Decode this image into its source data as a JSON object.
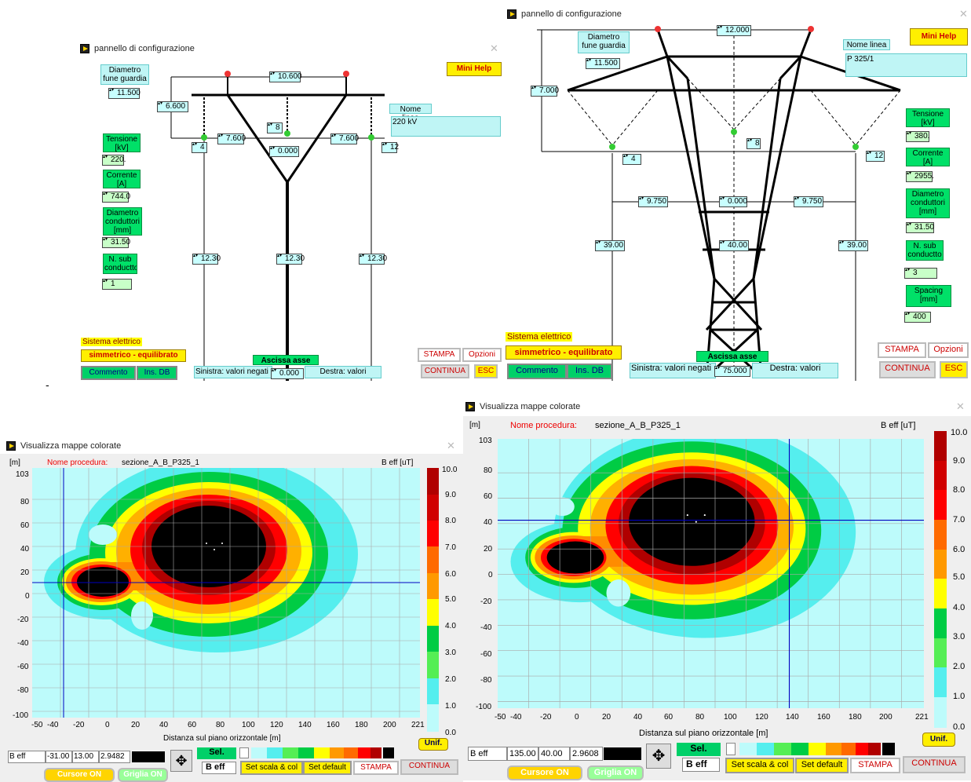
{
  "win1": {
    "title": "pannello di configurazione",
    "diametro": "Diametro\nfune guardia",
    "diam_val": "11.500",
    "top_width": "10.600",
    "h_left": "6.600",
    "side_left": "7.600",
    "side_right": "7.600",
    "center_label": "8",
    "center_val": "0.000",
    "left_phase": "4",
    "right_phase": "12",
    "mid_left": "12.30",
    "mid_center": "12.30",
    "mid_right": "12.30",
    "nome_linea": "Nome linea",
    "nome_val": "220 kV",
    "tensione": "Tensione\n[kV]",
    "tensione_val": "220.",
    "corrente": "Corrente\n[A]",
    "corrente_val": "744.0",
    "diam_cond": "Diametro\nconduttori\n[mm]",
    "diam_cond_val": "31.50",
    "nsub": "N. sub\nconductto",
    "nsub_val": "1",
    "sistema": "Sistema elettrico",
    "simm": "simmetrico - equilibrato",
    "commento": "Commento",
    "insdb": "Ins. DB",
    "ascissa": "Ascissa asse linea",
    "sinistra": "Sinistra: valori negati",
    "asc_val": "0.000",
    "destra": "Destra: valori",
    "minihelp": "Mini Help",
    "stampa": "STAMPA",
    "opzioni": "Opzioni",
    "continua": "CONTINUA",
    "esc": "ESC"
  },
  "win2": {
    "title": "pannello di configurazione",
    "diametro": "Diametro\nfune guardia",
    "diam_val": "11.500",
    "top_width": "12.000",
    "h_left": "7.000",
    "center_label": "8",
    "left_phase": "4",
    "right_phase": "12",
    "side_left": "9.750",
    "center_val": "0.000",
    "side_right": "9.750",
    "mid_left": "39.00",
    "mid_center": "40.00",
    "mid_right": "39.00",
    "nome_linea": "Nome linea",
    "nome_val": "P 325/1",
    "tensione": "Tensione\n[kV]",
    "tensione_val": "380.",
    "corrente": "Corrente\n[A]",
    "corrente_val": "2955.",
    "diam_cond": "Diametro\nconduttori\n[mm]",
    "diam_cond_val": "31.50",
    "nsub": "N. sub\nconductto",
    "nsub_val": "3",
    "spacing": "Spacing\n[mm]",
    "spacing_val": "400",
    "sistema": "Sistema elettrico",
    "simm": "simmetrico - equilibrato",
    "commento": "Commento",
    "insdb": "Ins. DB",
    "ascissa": "Ascissa asse linea",
    "sinistra": "Sinistra: valori negati",
    "asc_val": "75.000",
    "destra": "Destra: valori",
    "minihelp": "Mini Help",
    "stampa": "STAMPA",
    "opzioni": "Opzioni",
    "continua": "CONTINUA",
    "esc": "ESC"
  },
  "map1": {
    "title": "Visualizza mappe colorate",
    "unit": "[m]",
    "proc_label": "Nome procedura:",
    "proc": "sezione_A_B_P325_1",
    "beff": "B eff [uT]",
    "xlabel": "Distanza sul piano orizzontale [m]",
    "yticks": [
      "103",
      "80",
      "60",
      "40",
      "20",
      "0",
      "-20",
      "-40",
      "-60",
      "-80",
      "-100"
    ],
    "xticks": [
      "-50",
      "-40",
      "-20",
      "0",
      "20",
      "40",
      "60",
      "80",
      "100",
      "120",
      "140",
      "160",
      "180",
      "200",
      "221"
    ],
    "legend": [
      "10.0",
      "9.0",
      "8.0",
      "7.0",
      "6.0",
      "5.0",
      "4.0",
      "3.0",
      "2.0",
      "1.0",
      "0.0"
    ],
    "cursor": {
      "name": "B eff",
      "x": "-31.00",
      "y": "13.00",
      "v": "2.9482"
    },
    "sel": "Sel.",
    "beff2": "B eff",
    "setscala": "Set scala & col",
    "setdefault": "Set default",
    "stampa": "STAMPA",
    "continua": "CONTINUA",
    "unif": "Unif.",
    "cursore": "Cursore ON",
    "griglia": "Griglia ON"
  },
  "map2": {
    "title": "Visualizza mappe colorate",
    "unit": "[m]",
    "proc_label": "Nome procedura:",
    "proc": "sezione_A_B_P325_1",
    "beff": "B eff [uT]",
    "xlabel": "Distanza sul piano orizzontale [m]",
    "yticks": [
      "103",
      "80",
      "60",
      "40",
      "20",
      "0",
      "-20",
      "-40",
      "-60",
      "-80",
      "-100"
    ],
    "xticks": [
      "-50",
      "-40",
      "-20",
      "0",
      "20",
      "40",
      "60",
      "80",
      "100",
      "120",
      "140",
      "160",
      "180",
      "200",
      "221"
    ],
    "legend": [
      "10.0",
      "9.0",
      "8.0",
      "7.0",
      "6.0",
      "5.0",
      "4.0",
      "3.0",
      "2.0",
      "1.0",
      "0.0"
    ],
    "cursor": {
      "name": "B eff",
      "x": "135.00",
      "y": "40.00",
      "v": "2.9608"
    },
    "sel": "Sel.",
    "beff2": "B eff",
    "setscala": "Set scala & col",
    "setdefault": "Set default",
    "stampa": "STAMPA",
    "continua": "CONTINUA",
    "unif": "Unif.",
    "cursore": "Cursore ON",
    "griglia": "Griglia ON"
  },
  "colors": {
    "black": "#000000",
    "darkred": "#b00000",
    "red": "#ff0000",
    "orange": "#ff8c00",
    "amber": "#ffb000",
    "yellow": "#ffff00",
    "green": "#00cc44",
    "lime": "#66ee66",
    "cyan": "#55eeee",
    "lightcyan": "#bdfbfb"
  }
}
